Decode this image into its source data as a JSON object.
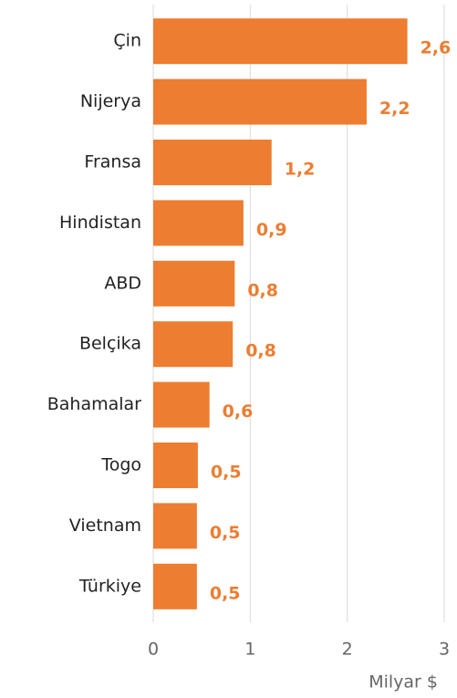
{
  "chart_data": {
    "type": "bar",
    "orientation": "horizontal",
    "categories": [
      "Çin",
      "Nijerya",
      "Fransa",
      "Hindistan",
      "ABD",
      "Belçika",
      "Bahamalar",
      "Togo",
      "Vietnam",
      "Türkiye"
    ],
    "values": [
      2.62,
      2.2,
      1.22,
      0.93,
      0.84,
      0.82,
      0.58,
      0.46,
      0.45,
      0.45
    ],
    "value_labels": [
      "2,6",
      "2,2",
      "1,2",
      "0,9",
      "0,8",
      "0,8",
      "0,6",
      "0,5",
      "0,5",
      "0,5"
    ],
    "color": "#ed7d31",
    "xlim": [
      0,
      3
    ],
    "xticks": [
      0,
      1,
      2,
      3
    ],
    "grid": true,
    "x_label": "Milyar $"
  }
}
